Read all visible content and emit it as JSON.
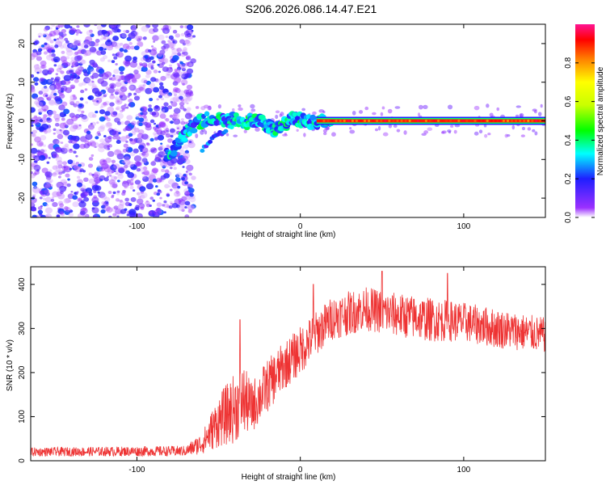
{
  "title": "S206.2026.086.14.47.E21",
  "chart_data": [
    {
      "type": "heatmap",
      "xlabel": "Height of straight line (km)",
      "ylabel": "Frequency (Hz)",
      "xlim": [
        -165,
        150
      ],
      "ylim": [
        -25,
        25
      ],
      "xticks": [
        -100,
        0,
        100
      ],
      "xtick_labels": [
        "-100",
        "0",
        "100"
      ],
      "yticks": [
        -20,
        -10,
        0,
        10,
        20
      ],
      "ytick_labels": [
        "-20",
        "-10",
        "0",
        "10",
        "20"
      ],
      "grid": false,
      "colorbar": {
        "label": "Normalized spectral amplitude",
        "range": [
          0,
          1
        ],
        "ticks": [
          0.0,
          0.2,
          0.4,
          0.6,
          0.8
        ],
        "tick_labels": [
          "0.0",
          "0.2",
          "0.4",
          "0.6",
          "0.8"
        ]
      },
      "ridge": [
        {
          "x": -80,
          "y": -9
        },
        {
          "x": -75,
          "y": -6
        },
        {
          "x": -70,
          "y": -3
        },
        {
          "x": -65,
          "y": -1
        },
        {
          "x": -60,
          "y": 0
        },
        {
          "x": -55,
          "y": 0.8
        },
        {
          "x": -50,
          "y": 0.5
        },
        {
          "x": -45,
          "y": 0.2
        },
        {
          "x": -40,
          "y": 0.5
        },
        {
          "x": -35,
          "y": -0.5
        },
        {
          "x": -30,
          "y": 0
        },
        {
          "x": -25,
          "y": 0.2
        },
        {
          "x": -20,
          "y": -1.5
        },
        {
          "x": -15,
          "y": -2.5
        },
        {
          "x": -10,
          "y": -1
        },
        {
          "x": -5,
          "y": 0.5
        },
        {
          "x": 0,
          "y": 0.3
        },
        {
          "x": 5,
          "y": -0.5
        },
        {
          "x": 10,
          "y": -0.2
        },
        {
          "x": 20,
          "y": 0
        },
        {
          "x": 150,
          "y": 0
        }
      ],
      "ridge_lower_branch": [
        {
          "x": -60,
          "y": -7
        },
        {
          "x": -55,
          "y": -5.5
        },
        {
          "x": -50,
          "y": -3.5
        },
        {
          "x": -45,
          "y": -2
        },
        {
          "x": -40,
          "y": -1
        }
      ],
      "noise_region": {
        "x": [
          -165,
          -65
        ],
        "y": [
          -25,
          25
        ]
      }
    },
    {
      "type": "line",
      "series": [
        {
          "name": "SNR",
          "color": "#ee3333"
        }
      ],
      "xlabel": "Height of straight line (km)",
      "ylabel": "SNR (10 * v/v)",
      "xlim": [
        -165,
        150
      ],
      "ylim": [
        0,
        440
      ],
      "xticks": [
        -100,
        0,
        100
      ],
      "xtick_labels": [
        "-100",
        "0",
        "100"
      ],
      "yticks": [
        0,
        100,
        200,
        300,
        400
      ],
      "ytick_labels": [
        "0",
        "100",
        "200",
        "300",
        "400"
      ],
      "grid": false,
      "baseline_envelope": [
        {
          "x": -165,
          "mean": 20,
          "spread": 10
        },
        {
          "x": -70,
          "mean": 22,
          "spread": 12
        },
        {
          "x": -60,
          "mean": 40,
          "spread": 25
        },
        {
          "x": -50,
          "mean": 90,
          "spread": 60
        },
        {
          "x": -40,
          "mean": 120,
          "spread": 80
        },
        {
          "x": -35,
          "mean": 140,
          "spread": 80
        },
        {
          "x": -30,
          "mean": 120,
          "spread": 60
        },
        {
          "x": -20,
          "mean": 170,
          "spread": 60
        },
        {
          "x": -10,
          "mean": 215,
          "spread": 55
        },
        {
          "x": 0,
          "mean": 250,
          "spread": 55
        },
        {
          "x": 10,
          "mean": 290,
          "spread": 50
        },
        {
          "x": 20,
          "mean": 325,
          "spread": 50
        },
        {
          "x": 40,
          "mean": 345,
          "spread": 50
        },
        {
          "x": 60,
          "mean": 330,
          "spread": 50
        },
        {
          "x": 80,
          "mean": 320,
          "spread": 50
        },
        {
          "x": 100,
          "mean": 315,
          "spread": 45
        },
        {
          "x": 120,
          "mean": 300,
          "spread": 45
        },
        {
          "x": 150,
          "mean": 285,
          "spread": 40
        }
      ],
      "notable_peaks": [
        {
          "x": -37,
          "y": 320
        },
        {
          "x": 8,
          "y": 400
        },
        {
          "x": 50,
          "y": 430
        },
        {
          "x": 90,
          "y": 425
        }
      ]
    }
  ]
}
